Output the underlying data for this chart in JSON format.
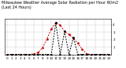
{
  "title": "Milwaukee Weather Average Solar Radiation per Hour W/m2 (Last 24 Hours)",
  "hours": [
    0,
    1,
    2,
    3,
    4,
    5,
    6,
    7,
    8,
    9,
    10,
    11,
    12,
    13,
    14,
    15,
    16,
    17,
    18,
    19,
    20,
    21,
    22,
    23
  ],
  "solar_red": [
    0,
    0,
    0,
    0,
    0,
    0,
    5,
    25,
    90,
    210,
    350,
    430,
    400,
    310,
    270,
    220,
    150,
    70,
    8,
    0,
    0,
    0,
    0,
    0
  ],
  "solar_black": [
    0,
    0,
    0,
    0,
    0,
    0,
    0,
    0,
    0,
    0,
    0,
    430,
    0,
    310,
    0,
    230,
    0,
    0,
    0,
    0,
    0,
    0,
    0,
    0
  ],
  "ylim": [
    0,
    480
  ],
  "ytick_vals": [
    100,
    200,
    300,
    400
  ],
  "ytick_labels": [
    "1",
    "2",
    "3",
    "4"
  ],
  "background_color": "#ffffff",
  "grid_color": "#999999",
  "red_color": "#cc0000",
  "black_color": "#000000",
  "title_fontsize": 3.5,
  "tick_fontsize": 3.0
}
